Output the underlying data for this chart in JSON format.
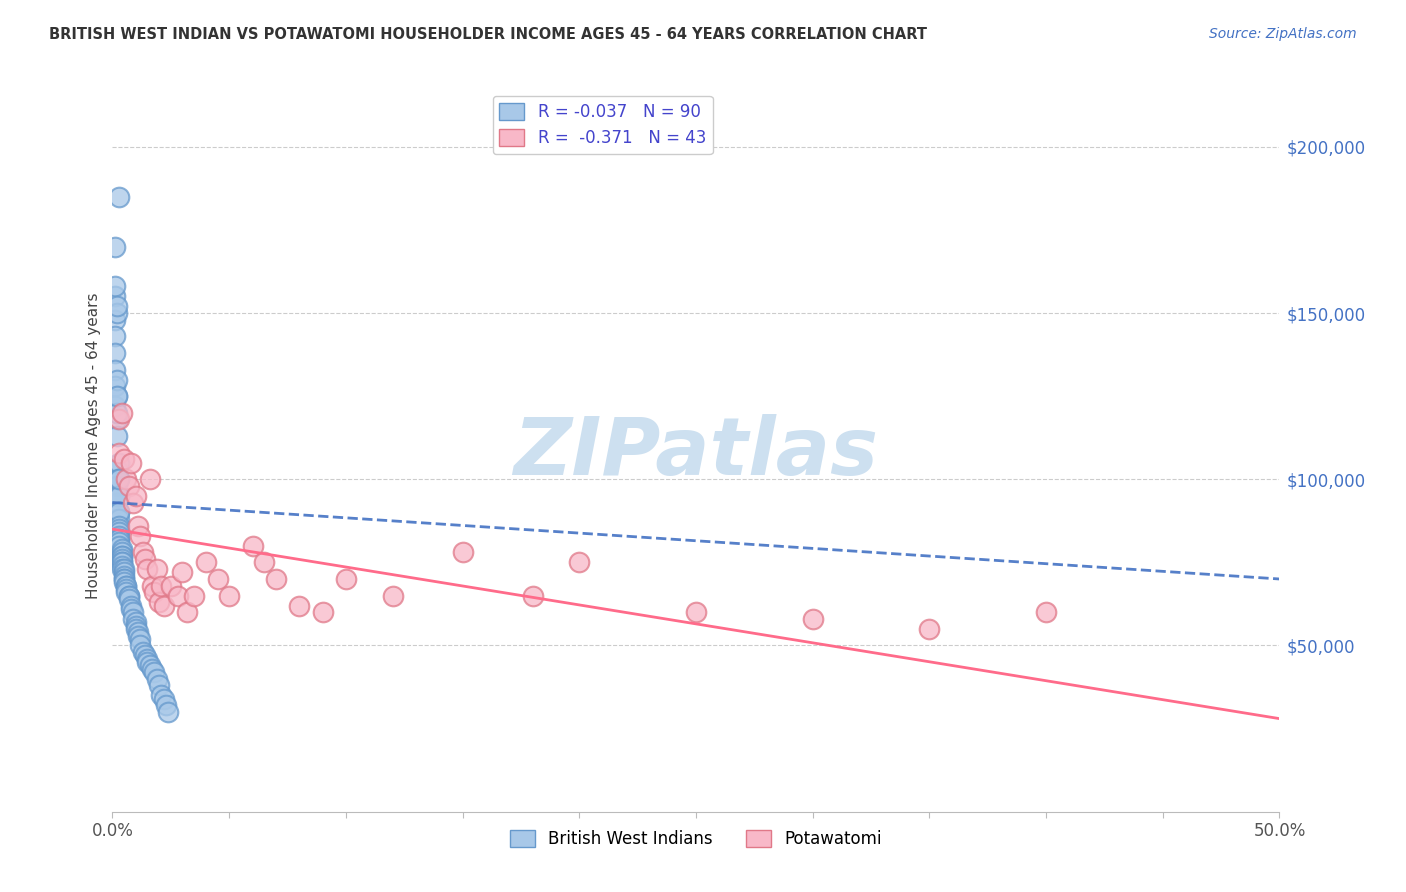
{
  "title": "BRITISH WEST INDIAN VS POTAWATOMI HOUSEHOLDER INCOME AGES 45 - 64 YEARS CORRELATION CHART",
  "source": "Source: ZipAtlas.com",
  "ylabel": "Householder Income Ages 45 - 64 years",
  "xlim": [
    0.0,
    0.5
  ],
  "ylim": [
    0,
    220000
  ],
  "xticks": [
    0.0,
    0.05,
    0.1,
    0.15,
    0.2,
    0.25,
    0.3,
    0.35,
    0.4,
    0.45,
    0.5
  ],
  "ytick_labels_right": [
    "$50,000",
    "$100,000",
    "$150,000",
    "$200,000"
  ],
  "ytick_vals_right": [
    50000,
    100000,
    150000,
    200000
  ],
  "legend_line1": "R = -0.037   N = 90",
  "legend_line2": "R =  -0.371   N = 43",
  "bwi_color": "#a8c8e8",
  "bwi_edge_color": "#6699cc",
  "pot_color": "#f8b8c8",
  "pot_edge_color": "#e07888",
  "bwi_line_color": "#4472C4",
  "pot_line_color": "#FF6B8A",
  "watermark": "ZIPatlas",
  "watermark_color": "#cde0f0",
  "bwi_label": "British West Indians",
  "pot_label": "Potawatomi",
  "bwi_x": [
    0.001,
    0.003,
    0.001,
    0.001,
    0.001,
    0.001,
    0.001,
    0.001,
    0.001,
    0.001,
    0.002,
    0.002,
    0.002,
    0.002,
    0.002,
    0.002,
    0.002,
    0.002,
    0.002,
    0.002,
    0.002,
    0.002,
    0.002,
    0.002,
    0.002,
    0.002,
    0.002,
    0.003,
    0.003,
    0.003,
    0.003,
    0.003,
    0.003,
    0.003,
    0.003,
    0.003,
    0.003,
    0.003,
    0.003,
    0.003,
    0.003,
    0.003,
    0.003,
    0.003,
    0.004,
    0.004,
    0.004,
    0.004,
    0.004,
    0.004,
    0.004,
    0.004,
    0.004,
    0.005,
    0.005,
    0.005,
    0.005,
    0.005,
    0.005,
    0.006,
    0.006,
    0.006,
    0.006,
    0.007,
    0.007,
    0.007,
    0.008,
    0.008,
    0.009,
    0.009,
    0.01,
    0.01,
    0.01,
    0.011,
    0.011,
    0.012,
    0.012,
    0.013,
    0.014,
    0.015,
    0.015,
    0.016,
    0.017,
    0.018,
    0.019,
    0.02,
    0.021,
    0.022,
    0.023,
    0.024
  ],
  "bwi_y": [
    170000,
    185000,
    155000,
    148000,
    158000,
    143000,
    138000,
    133000,
    128000,
    122000,
    118000,
    150000,
    152000,
    113000,
    125000,
    130000,
    103000,
    100000,
    98000,
    120000,
    93000,
    125000,
    88000,
    86000,
    95000,
    84000,
    83000,
    105000,
    100000,
    80000,
    95000,
    95000,
    90000,
    88000,
    90000,
    86000,
    85000,
    84000,
    83000,
    82000,
    82000,
    81000,
    80000,
    100000,
    79000,
    78000,
    77000,
    77000,
    76000,
    75000,
    75000,
    74000,
    73000,
    73000,
    72000,
    71000,
    70000,
    70000,
    69000,
    68000,
    68000,
    67000,
    66000,
    65000,
    65000,
    64000,
    62000,
    61000,
    60000,
    58000,
    57000,
    56000,
    55000,
    54000,
    53000,
    52000,
    50000,
    48000,
    47000,
    46000,
    45000,
    44000,
    43000,
    42000,
    40000,
    38000,
    35000,
    34000,
    32000,
    30000
  ],
  "pot_x": [
    0.003,
    0.003,
    0.004,
    0.005,
    0.006,
    0.007,
    0.008,
    0.009,
    0.01,
    0.011,
    0.012,
    0.013,
    0.014,
    0.015,
    0.016,
    0.017,
    0.018,
    0.019,
    0.02,
    0.021,
    0.022,
    0.025,
    0.028,
    0.03,
    0.032,
    0.035,
    0.04,
    0.045,
    0.05,
    0.06,
    0.065,
    0.07,
    0.08,
    0.09,
    0.1,
    0.12,
    0.15,
    0.18,
    0.2,
    0.25,
    0.3,
    0.35,
    0.4
  ],
  "pot_y": [
    118000,
    108000,
    120000,
    106000,
    100000,
    98000,
    105000,
    93000,
    95000,
    86000,
    83000,
    78000,
    76000,
    73000,
    100000,
    68000,
    66000,
    73000,
    63000,
    68000,
    62000,
    68000,
    65000,
    72000,
    60000,
    65000,
    75000,
    70000,
    65000,
    80000,
    75000,
    70000,
    62000,
    60000,
    70000,
    65000,
    78000,
    65000,
    75000,
    60000,
    58000,
    55000,
    60000
  ]
}
